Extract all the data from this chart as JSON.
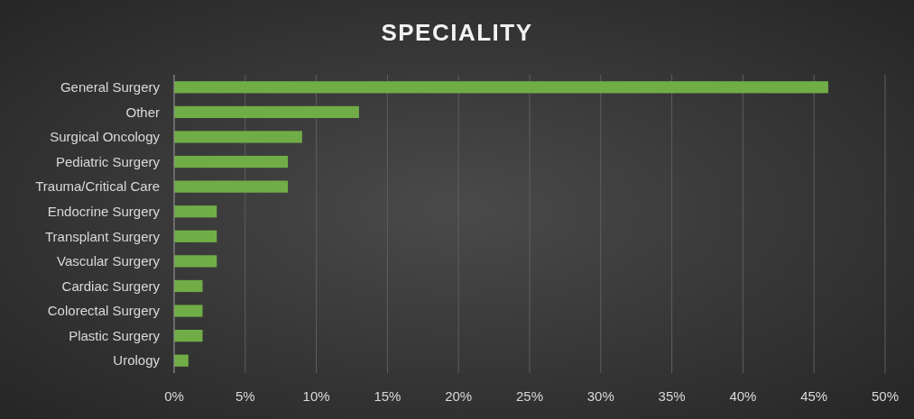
{
  "chart_data": {
    "type": "bar",
    "orientation": "horizontal",
    "title": "SPECIALITY",
    "categories": [
      "General Surgery",
      "Other",
      "Surgical Oncology",
      "Pediatric Surgery",
      "Trauma/Critical Care",
      "Endocrine Surgery",
      "Transplant Surgery",
      "Vascular Surgery",
      "Cardiac Surgery",
      "Colorectal Surgery",
      "Plastic Surgery",
      "Urology"
    ],
    "values": [
      46,
      13,
      9,
      8,
      8,
      3,
      3,
      3,
      2,
      2,
      2,
      1
    ],
    "color": "#70ad47",
    "xlim": [
      0,
      50
    ],
    "xticks": [
      {
        "value": 0,
        "label": "0%"
      },
      {
        "value": 5,
        "label": "5%"
      },
      {
        "value": 10,
        "label": "10%"
      },
      {
        "value": 15,
        "label": "15%"
      },
      {
        "value": 20,
        "label": "20%"
      },
      {
        "value": 25,
        "label": "25%"
      },
      {
        "value": 30,
        "label": "30%"
      },
      {
        "value": 35,
        "label": "35%"
      },
      {
        "value": 40,
        "label": "40%"
      },
      {
        "value": 45,
        "label": "45%"
      },
      {
        "value": 50,
        "label": "50%"
      }
    ],
    "grid": "x"
  }
}
